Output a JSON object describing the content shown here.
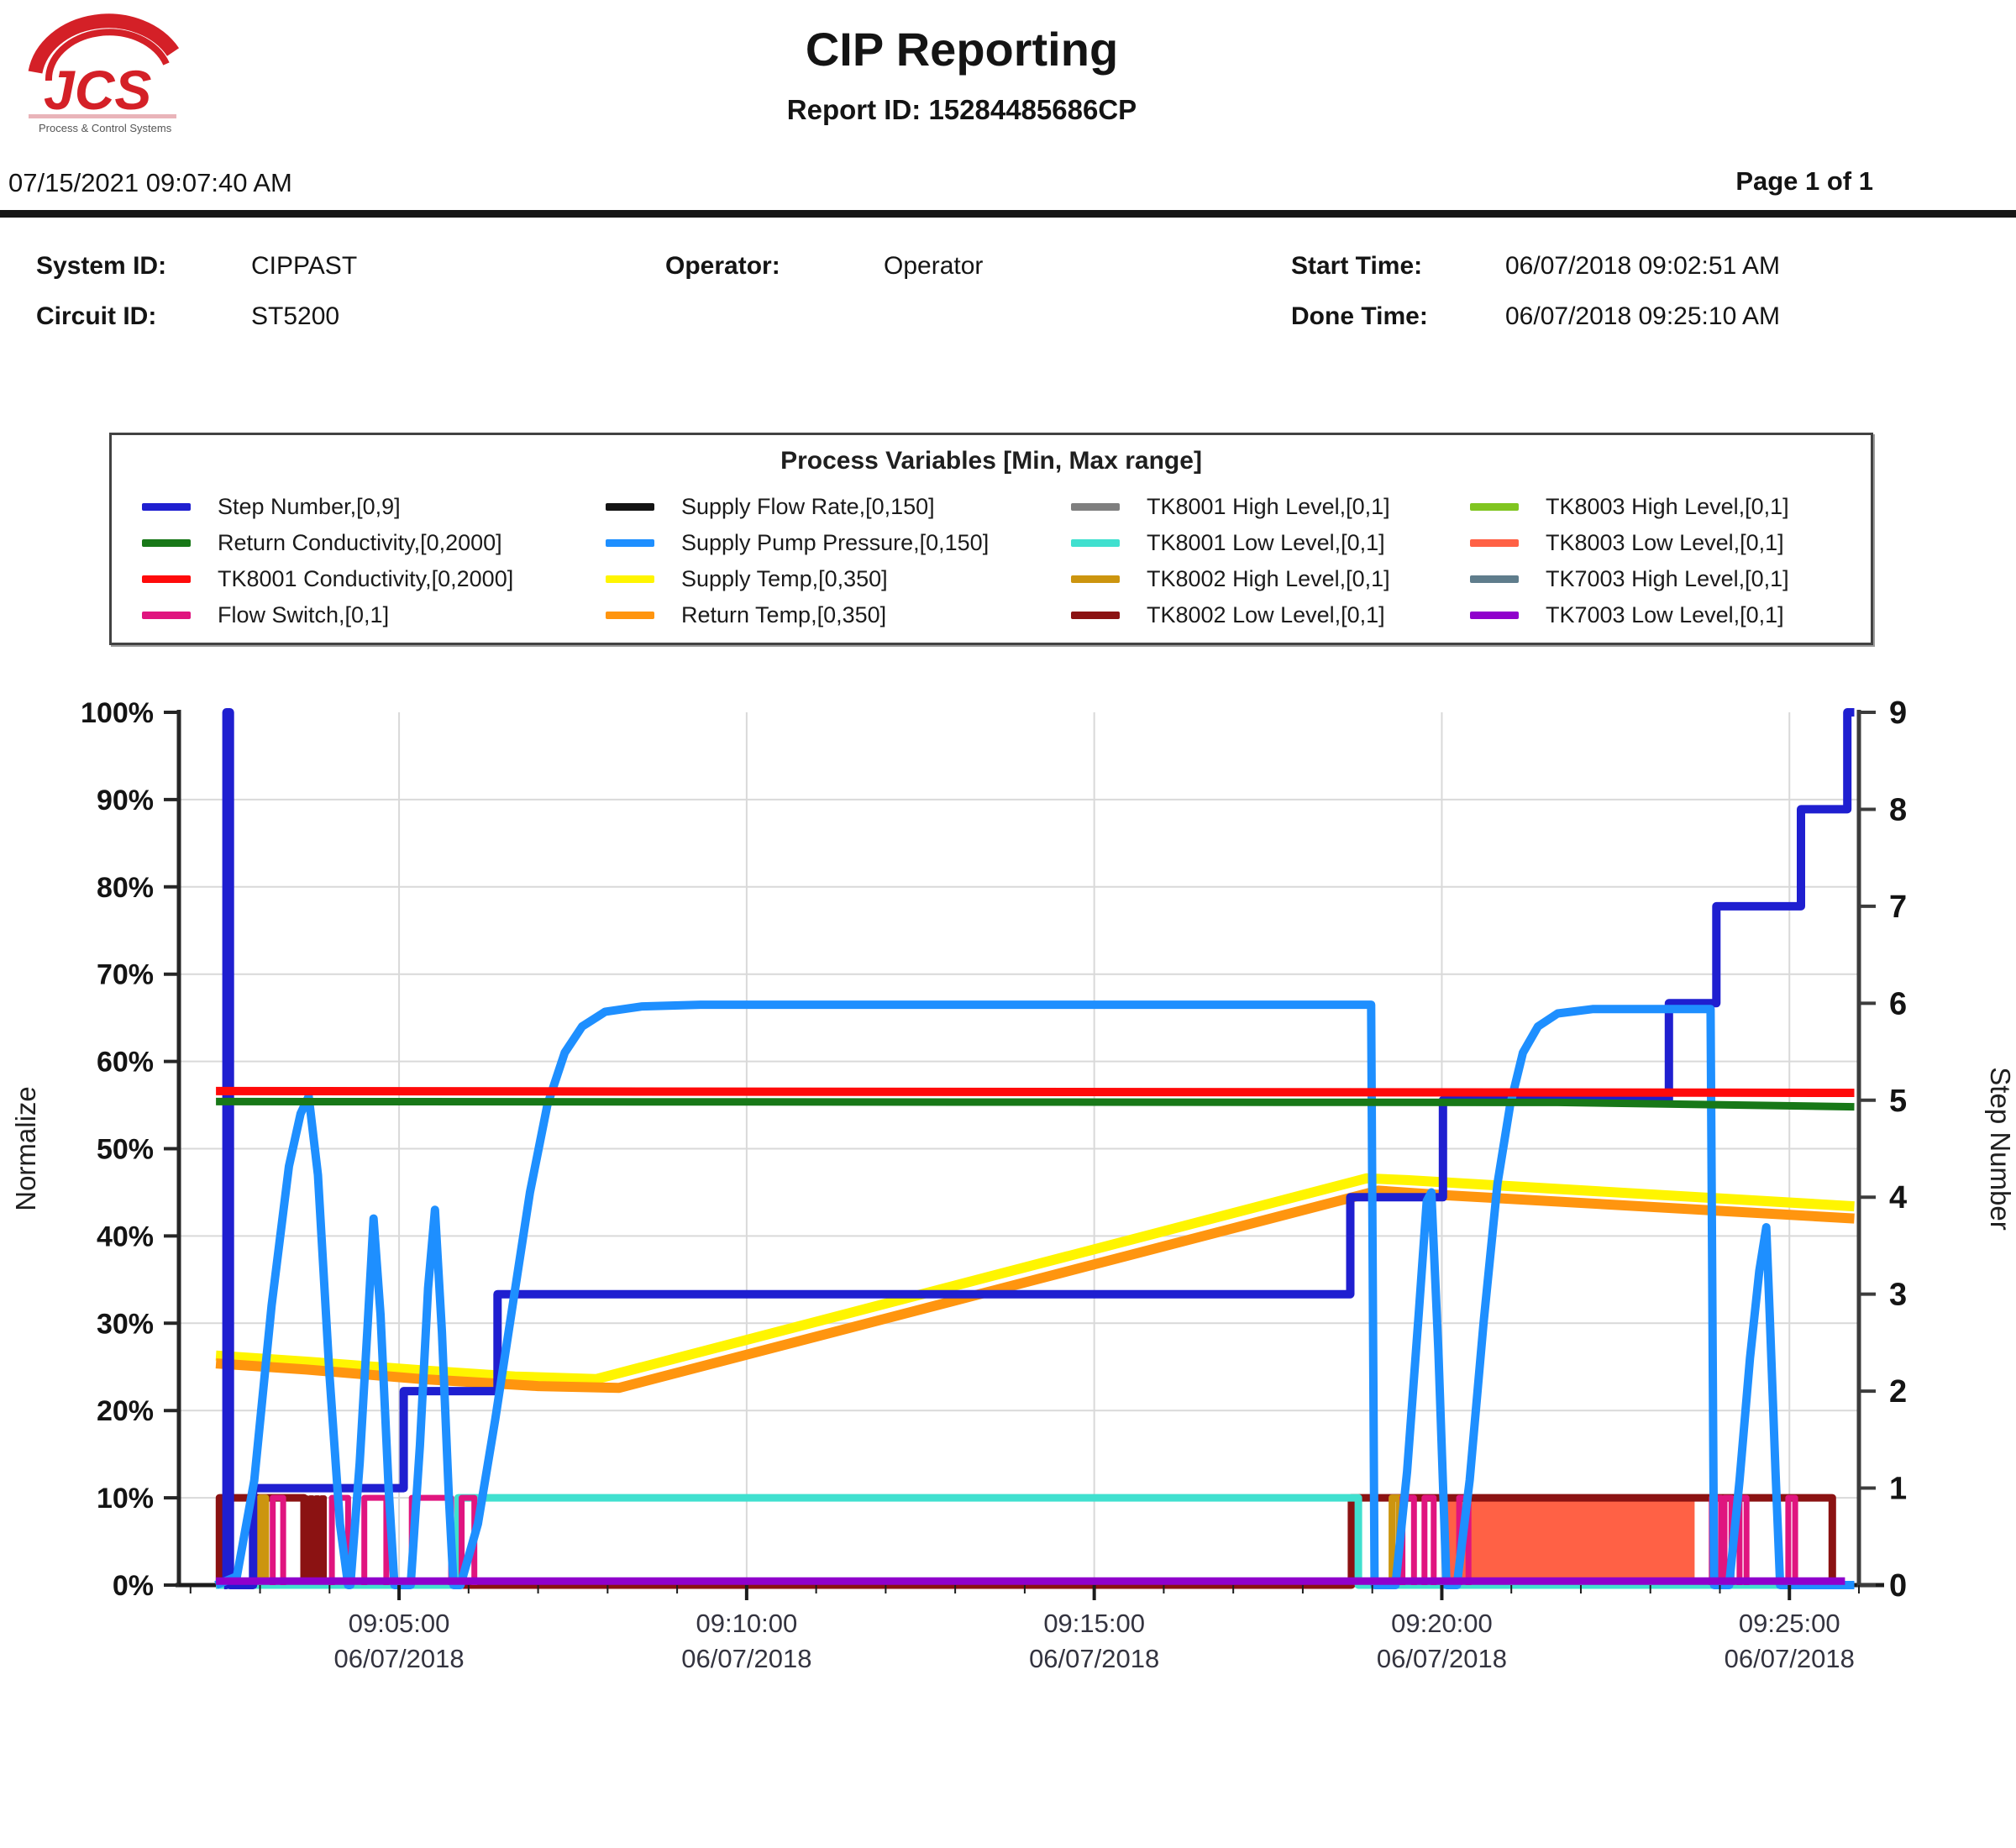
{
  "header": {
    "title": "CIP Reporting",
    "report_id": "Report ID: 15284485686CP",
    "printed_timestamp": "07/15/2021 09:07:40 AM",
    "page_label": "Page 1 of 1",
    "logo_text": "JCS",
    "logo_caption": "Process & Control Systems"
  },
  "info": {
    "system_id_label": "System ID:",
    "system_id": "CIPPAST",
    "circuit_id_label": "Circuit ID:",
    "circuit_id": "ST5200",
    "operator_label": "Operator:",
    "operator": "Operator",
    "start_time_label": "Start Time:",
    "start_time": "06/07/2018 09:02:51 AM",
    "done_time_label": "Done Time:",
    "done_time": "06/07/2018 09:25:10 AM"
  },
  "legend": {
    "title": "Process Variables [Min, Max range]",
    "items": [
      {
        "label": "Step Number,[0,9]",
        "color": "#1F1FD0"
      },
      {
        "label": "Return Conductivity,[0,2000]",
        "color": "#187818"
      },
      {
        "label": "TK8001 Conductivity,[0,2000]",
        "color": "#FF0A0A"
      },
      {
        "label": "Flow Switch,[0,1]",
        "color": "#E0157F"
      },
      {
        "label": "Supply Flow Rate,[0,150]",
        "color": "#141414"
      },
      {
        "label": "Supply Pump Pressure,[0,150]",
        "color": "#1E8FFF"
      },
      {
        "label": "Supply Temp,[0,350]",
        "color": "#FFF500"
      },
      {
        "label": "Return Temp,[0,350]",
        "color": "#FF950F"
      },
      {
        "label": "TK8001 High Level,[0,1]",
        "color": "#7F7F7F"
      },
      {
        "label": "TK8001 Low Level,[0,1]",
        "color": "#40E0CF"
      },
      {
        "label": "TK8002 High Level,[0,1]",
        "color": "#CC950F"
      },
      {
        "label": "TK8002 Low Level,[0,1]",
        "color": "#8B1212"
      },
      {
        "label": "TK8003 High Level,[0,1]",
        "color": "#80C520"
      },
      {
        "label": "TK8003 Low Level,[0,1]",
        "color": "#FF6145"
      },
      {
        "label": "TK7003 High Level,[0,1]",
        "color": "#5F7D8C"
      },
      {
        "label": "TK7003 Low Level,[0,1]",
        "color": "#9000CC"
      }
    ]
  },
  "chart_data": {
    "type": "line",
    "ylabel_left": "Normalize",
    "ylabel_right": "Step Number",
    "y_axis_left": {
      "min": 0,
      "max": 100,
      "unit": "%"
    },
    "y_axis_right": {
      "min": 0,
      "max": 9
    },
    "grid_percent_lines": [
      10,
      20,
      30,
      40,
      50,
      60,
      70,
      80,
      90
    ],
    "x_domain_seconds_after_0900": [
      110,
      1560
    ],
    "x_minor_tick_seconds": 60,
    "x_ticks": [
      {
        "t": 300,
        "lines": [
          "09:05:00",
          "06/07/2018"
        ]
      },
      {
        "t": 600,
        "lines": [
          "09:10:00",
          "06/07/2018"
        ]
      },
      {
        "t": 900,
        "lines": [
          "09:15:00",
          "06/07/2018"
        ]
      },
      {
        "t": 1200,
        "lines": [
          "09:20:00",
          "06/07/2018"
        ]
      },
      {
        "t": 1500,
        "lines": [
          "09:25:00",
          "06/07/2018"
        ]
      }
    ],
    "y_ticks_left": [
      {
        "v": 0,
        "label": "0%"
      },
      {
        "v": 10,
        "label": "10%"
      },
      {
        "v": 20,
        "label": "20%"
      },
      {
        "v": 30,
        "label": "30%"
      },
      {
        "v": 40,
        "label": "40%"
      },
      {
        "v": 50,
        "label": "50%"
      },
      {
        "v": 60,
        "label": "60%"
      },
      {
        "v": 70,
        "label": "70%"
      },
      {
        "v": 80,
        "label": "80%"
      },
      {
        "v": 90,
        "label": "90%"
      },
      {
        "v": 100,
        "label": "100%"
      }
    ],
    "y_ticks_right": [
      {
        "v": 0,
        "label": "0"
      },
      {
        "v": 1,
        "label": "1"
      },
      {
        "v": 2,
        "label": "2"
      },
      {
        "v": 3,
        "label": "3"
      },
      {
        "v": 4,
        "label": "4"
      },
      {
        "v": 5,
        "label": "5"
      },
      {
        "v": 6,
        "label": "6"
      },
      {
        "v": 7,
        "label": "7"
      },
      {
        "v": 8,
        "label": "8"
      },
      {
        "v": 9,
        "label": "9"
      }
    ],
    "series": [
      {
        "name": "Supply Flow Rate",
        "color": "#141414",
        "width": 5,
        "type": "line",
        "points": [
          [
            142,
            0
          ],
          [
            1548,
            0
          ]
        ]
      },
      {
        "name": "TK8001 High Level",
        "color": "#7F7F7F",
        "width": 5,
        "type": "line",
        "points": [
          [
            142,
            0
          ],
          [
            1548,
            0
          ]
        ]
      },
      {
        "name": "TK8003 High Level",
        "color": "#80C520",
        "width": 5,
        "type": "line",
        "points": [
          [
            142,
            0
          ],
          [
            1548,
            0
          ]
        ]
      },
      {
        "name": "TK7003 High Level",
        "color": "#5F7D8C",
        "width": 5,
        "type": "line",
        "points": [
          [
            142,
            0
          ],
          [
            1548,
            0
          ]
        ]
      },
      {
        "name": "TK8003 Low Level",
        "color": "#FF6145",
        "width": 6,
        "type": "comb",
        "from": 1204,
        "to": 1419,
        "period": 8,
        "high": 10
      },
      {
        "name": "TK8002 Low Level burst",
        "color": "#8B1212",
        "width": 6,
        "type": "comb",
        "from": 218,
        "to": 236,
        "period": 5,
        "high": 10
      },
      {
        "name": "TK8002 Low Level",
        "color": "#8B1212",
        "width": 9,
        "type": "step",
        "points": [
          [
            142,
            0
          ],
          [
            145,
            10
          ],
          [
            218,
            0
          ],
          [
            1122,
            10
          ],
          [
            1537,
            0
          ],
          [
            1548,
            0
          ]
        ]
      },
      {
        "name": "TK8002 High Level",
        "color": "#CC950F",
        "width": 8,
        "type": "pulses",
        "high": 10,
        "intervals": [
          [
            180,
            185
          ],
          [
            1157,
            1163
          ]
        ]
      },
      {
        "name": "TK8001 Low Level",
        "color": "#40E0CF",
        "width": 9,
        "type": "step",
        "points": [
          [
            142,
            0
          ],
          [
            351,
            10
          ],
          [
            1128,
            0
          ],
          [
            1548,
            0
          ]
        ]
      },
      {
        "name": "Flow Switch",
        "color": "#E0157F",
        "width": 7,
        "type": "pulses",
        "high": 10,
        "intervals": [
          [
            191,
            200
          ],
          [
            242,
            256
          ],
          [
            270,
            289
          ],
          [
            311,
            345
          ],
          [
            354,
            365
          ],
          [
            1166,
            1176
          ],
          [
            1185,
            1193
          ],
          [
            1215,
            1223
          ],
          [
            1433,
            1441
          ],
          [
            1444,
            1450
          ],
          [
            1457,
            1463
          ],
          [
            1499,
            1505
          ]
        ]
      },
      {
        "name": "Supply Temp",
        "color": "#FFF500",
        "width": 12,
        "type": "line",
        "points": [
          [
            142,
            26.3
          ],
          [
            220,
            25.6
          ],
          [
            320,
            24.6
          ],
          [
            400,
            23.9
          ],
          [
            470,
            23.6
          ],
          [
            1135,
            46.6
          ],
          [
            1170,
            46.4
          ],
          [
            1556,
            43.4
          ]
        ]
      },
      {
        "name": "Return Temp",
        "color": "#FF950F",
        "width": 12,
        "type": "line",
        "points": [
          [
            142,
            25.4
          ],
          [
            220,
            24.7
          ],
          [
            320,
            23.6
          ],
          [
            420,
            22.8
          ],
          [
            490,
            22.6
          ],
          [
            1145,
            45.2
          ],
          [
            1200,
            44.7
          ],
          [
            1556,
            42.0
          ]
        ]
      },
      {
        "name": "Step Number",
        "color": "#1F1FD0",
        "width": 10,
        "type": "step",
        "points": [
          [
            149,
            0
          ],
          [
            151,
            100
          ],
          [
            154,
            0
          ],
          [
            174,
            11.11
          ],
          [
            304,
            22.22
          ],
          [
            385,
            33.33
          ],
          [
            1121,
            44.44
          ],
          [
            1201,
            55.56
          ],
          [
            1396,
            66.67
          ],
          [
            1437,
            77.78
          ],
          [
            1510,
            88.89
          ],
          [
            1550,
            100
          ],
          [
            1556,
            100
          ]
        ]
      },
      {
        "name": "Supply Pump Pressure",
        "color": "#1E8FFF",
        "width": 10,
        "type": "line",
        "points": [
          [
            142,
            0
          ],
          [
            160,
            1
          ],
          [
            175,
            12
          ],
          [
            190,
            32
          ],
          [
            205,
            48
          ],
          [
            215,
            54
          ],
          [
            222,
            56
          ],
          [
            230,
            47
          ],
          [
            240,
            24
          ],
          [
            249,
            7
          ],
          [
            256,
            0
          ],
          [
            258,
            0
          ],
          [
            266,
            14
          ],
          [
            273,
            30
          ],
          [
            278,
            42
          ],
          [
            284,
            31
          ],
          [
            291,
            11
          ],
          [
            296,
            0
          ],
          [
            310,
            0
          ],
          [
            318,
            16
          ],
          [
            325,
            34
          ],
          [
            331,
            43
          ],
          [
            337,
            29
          ],
          [
            343,
            10
          ],
          [
            347,
            0
          ],
          [
            353,
            0
          ],
          [
            368,
            7
          ],
          [
            383,
            19
          ],
          [
            398,
            32
          ],
          [
            413,
            45
          ],
          [
            428,
            55
          ],
          [
            443,
            61
          ],
          [
            458,
            64
          ],
          [
            478,
            65.7
          ],
          [
            510,
            66.3
          ],
          [
            560,
            66.5
          ],
          [
            1139,
            66.5
          ],
          [
            1142,
            0
          ],
          [
            1160,
            0
          ],
          [
            1170,
            13
          ],
          [
            1180,
            31
          ],
          [
            1187,
            44
          ],
          [
            1191,
            45
          ],
          [
            1197,
            27
          ],
          [
            1204,
            0
          ],
          [
            1213,
            0
          ],
          [
            1224,
            12
          ],
          [
            1236,
            30
          ],
          [
            1248,
            46
          ],
          [
            1259,
            55
          ],
          [
            1270,
            61
          ],
          [
            1283,
            64
          ],
          [
            1300,
            65.5
          ],
          [
            1330,
            66
          ],
          [
            1432,
            66
          ],
          [
            1435,
            0
          ],
          [
            1448,
            0
          ],
          [
            1457,
            12
          ],
          [
            1466,
            26
          ],
          [
            1474,
            36
          ],
          [
            1480,
            41
          ],
          [
            1483,
            31
          ],
          [
            1488,
            13
          ],
          [
            1492,
            0
          ],
          [
            1556,
            0
          ]
        ]
      },
      {
        "name": "TK7003 Low Level",
        "color": "#9000CC",
        "width": 9,
        "type": "line",
        "points": [
          [
            142,
            0.45
          ],
          [
            1548,
            0.45
          ]
        ]
      },
      {
        "name": "Return Conductivity",
        "color": "#187818",
        "width": 9,
        "type": "line",
        "points": [
          [
            142,
            55.4
          ],
          [
            1300,
            55.3
          ],
          [
            1556,
            54.8
          ]
        ]
      },
      {
        "name": "TK8001 Conductivity",
        "color": "#FF0A0A",
        "width": 10,
        "type": "line",
        "points": [
          [
            142,
            56.6
          ],
          [
            1556,
            56.4
          ]
        ]
      }
    ]
  }
}
